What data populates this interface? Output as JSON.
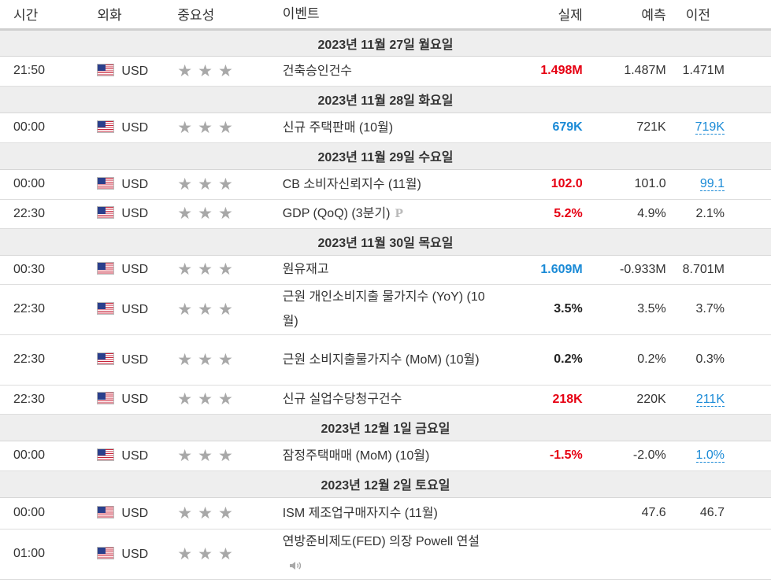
{
  "headers": {
    "time": "시간",
    "currency": "외화",
    "importance": "중요성",
    "event": "이벤트",
    "actual": "실제",
    "forecast": "예측",
    "previous": "이전"
  },
  "days": [
    {
      "date": "2023년 11월 27일 월요일",
      "events": [
        {
          "time": "21:50",
          "currency": "USD",
          "event": "건축승인건수",
          "actual": "1.498M",
          "actual_color": "red",
          "forecast": "1.487M",
          "previous": "1.471M",
          "previous_link": false
        }
      ]
    },
    {
      "date": "2023년 11월 28일 화요일",
      "events": [
        {
          "time": "00:00",
          "currency": "USD",
          "event": "신규 주택판매 (10월)",
          "actual": "679K",
          "actual_color": "blue",
          "forecast": "721K",
          "previous": "719K",
          "previous_link": true
        }
      ]
    },
    {
      "date": "2023년 11월 29일 수요일",
      "events": [
        {
          "time": "00:00",
          "currency": "USD",
          "event": "CB 소비자신뢰지수 (11월)",
          "actual": "102.0",
          "actual_color": "red",
          "forecast": "101.0",
          "previous": "99.1",
          "previous_link": true
        },
        {
          "time": "22:30",
          "currency": "USD",
          "event": "GDP (QoQ) (3분기)",
          "badge": "P",
          "actual": "5.2%",
          "actual_color": "red",
          "forecast": "4.9%",
          "previous": "2.1%",
          "previous_link": false
        }
      ]
    },
    {
      "date": "2023년 11월 30일 목요일",
      "events": [
        {
          "time": "00:30",
          "currency": "USD",
          "event": "원유재고",
          "actual": "1.609M",
          "actual_color": "blue",
          "forecast": "-0.933M",
          "previous": "8.701M",
          "previous_link": false
        },
        {
          "time": "22:30",
          "currency": "USD",
          "event": "근원 개인소비지출 물가지수 (YoY) (10월)",
          "actual": "3.5%",
          "actual_color": "black",
          "forecast": "3.5%",
          "previous": "3.7%",
          "previous_link": false
        },
        {
          "time": "22:30",
          "currency": "USD",
          "event": "근원 소비지출물가지수 (MoM) (10월)",
          "actual": "0.2%",
          "actual_color": "black",
          "forecast": "0.2%",
          "previous": "0.3%",
          "previous_link": false
        },
        {
          "time": "22:30",
          "currency": "USD",
          "event": "신규 실업수당청구건수",
          "actual": "218K",
          "actual_color": "red",
          "forecast": "220K",
          "previous": "211K",
          "previous_link": true
        }
      ]
    },
    {
      "date": "2023년 12월 1일 금요일",
      "events": [
        {
          "time": "00:00",
          "currency": "USD",
          "event": "잠정주택매매 (MoM) (10월)",
          "actual": "-1.5%",
          "actual_color": "red",
          "forecast": "-2.0%",
          "previous": "1.0%",
          "previous_link": true
        }
      ]
    },
    {
      "date": "2023년 12월 2일 토요일",
      "events": [
        {
          "time": "00:00",
          "currency": "USD",
          "event": "ISM 제조업구매자지수 (11월)",
          "actual": "",
          "actual_color": "black",
          "forecast": "47.6",
          "previous": "46.7",
          "previous_link": false
        },
        {
          "time": "01:00",
          "currency": "USD",
          "event": "연방준비제도(FED) 의장 Powell 연설",
          "speech": true,
          "actual": "",
          "actual_color": "black",
          "forecast": "",
          "previous": "",
          "previous_link": false
        }
      ]
    }
  ],
  "importance_stars": "★★★",
  "colors": {
    "red": "#e60012",
    "blue": "#1a8ad6",
    "star": "#a8a8a8",
    "day_bg": "#eeeeee"
  }
}
